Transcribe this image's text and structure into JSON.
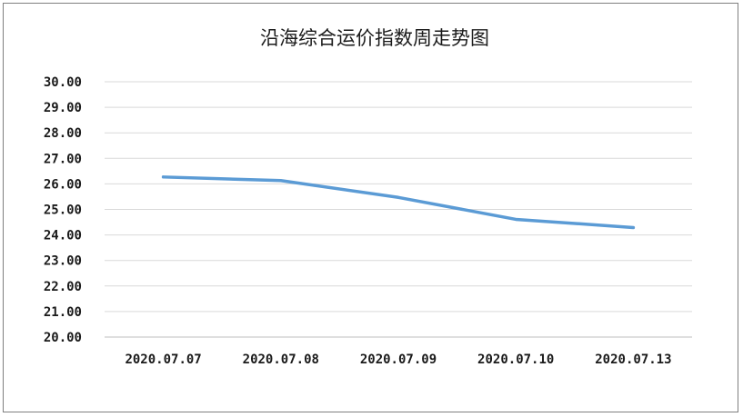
{
  "chart_data": {
    "type": "line",
    "title": "沿海综合运价指数周走势图",
    "xlabel": "",
    "ylabel": "",
    "categories": [
      "2020.07.07",
      "2020.07.08",
      "2020.07.09",
      "2020.07.10",
      "2020.07.13"
    ],
    "series": [
      {
        "values": [
          26.27,
          26.13,
          25.47,
          24.61,
          24.29
        ]
      }
    ],
    "ylim": [
      20.0,
      30.0
    ],
    "ytick_step": 1.0,
    "yticks": [
      "20.00",
      "21.00",
      "22.00",
      "23.00",
      "24.00",
      "25.00",
      "26.00",
      "27.00",
      "28.00",
      "29.00",
      "30.00"
    ],
    "grid": true,
    "legend": "none",
    "line_color": "#5b9bd5"
  }
}
